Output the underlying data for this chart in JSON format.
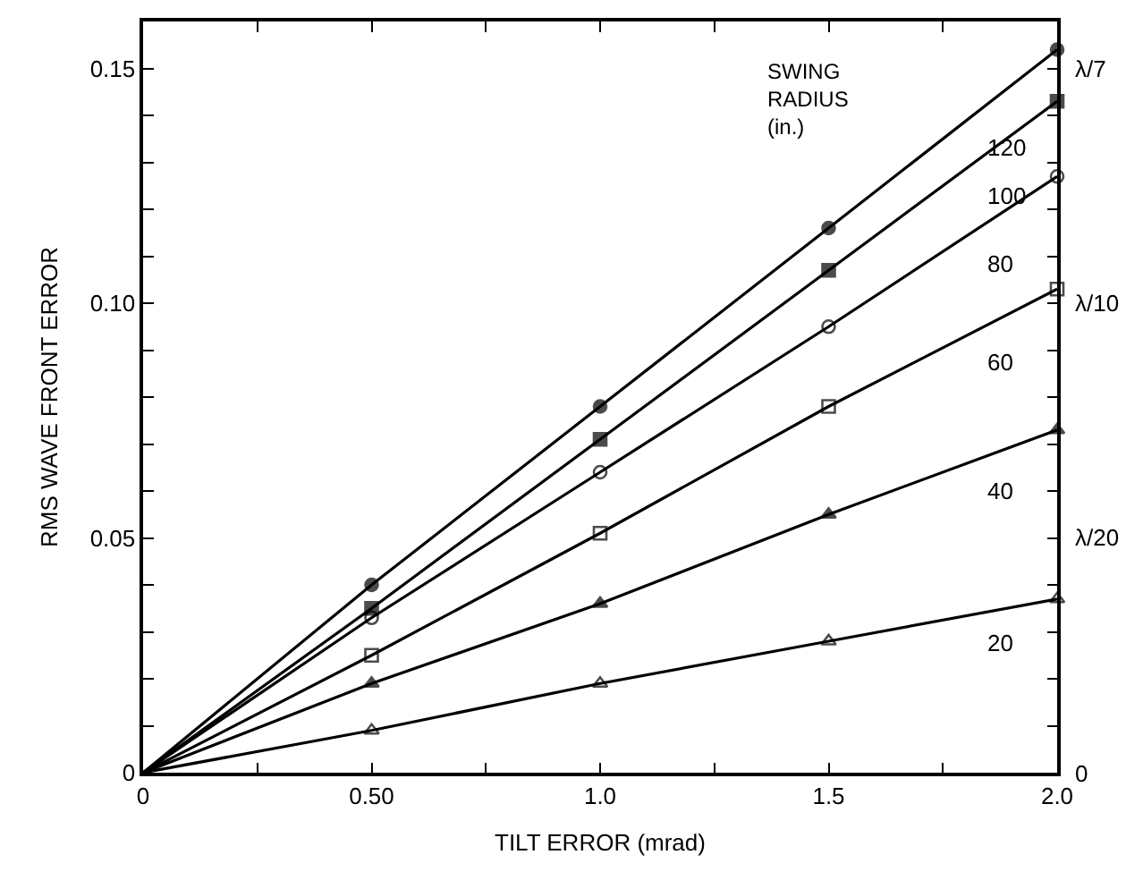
{
  "chart_data": {
    "type": "line",
    "xlabel": "TILT ERROR (mrad)",
    "ylabel": "RMS WAVE FRONT ERROR",
    "legend_title": "SWING RADIUS (in.)",
    "x": [
      0,
      0.5,
      1.0,
      1.5,
      2.0
    ],
    "series": [
      {
        "name": "120",
        "color": "#000000",
        "marker": "circle",
        "values": [
          0,
          0.04,
          0.078,
          0.116,
          0.154
        ]
      },
      {
        "name": "100",
        "color": "#000000",
        "marker": "square",
        "values": [
          0,
          0.035,
          0.071,
          0.107,
          0.143
        ]
      },
      {
        "name": "80",
        "color": "#000000",
        "marker": "circle",
        "values": [
          0,
          0.033,
          0.064,
          0.095,
          0.127
        ]
      },
      {
        "name": "60",
        "color": "#000000",
        "marker": "square",
        "values": [
          0,
          0.025,
          0.051,
          0.078,
          0.103
        ]
      },
      {
        "name": "40",
        "color": "#000000",
        "marker": "triangle",
        "values": [
          0,
          0.019,
          0.036,
          0.055,
          0.073
        ]
      },
      {
        "name": "20",
        "color": "#000000",
        "marker": "triangle",
        "values": [
          0,
          0.009,
          0.019,
          0.028,
          0.037
        ]
      }
    ],
    "xlim": [
      0,
      2.0
    ],
    "xticks": [
      0,
      {
        "value": 0.25,
        "label": null
      },
      {
        "value": 0.5,
        "label": "0.50"
      },
      {
        "value": 0.75,
        "label": null
      },
      {
        "value": 1.0,
        "label": "1.0"
      },
      {
        "value": 1.25,
        "label": null
      },
      {
        "value": 1.5,
        "label": "1.5"
      },
      {
        "value": 1.75,
        "label": null
      },
      {
        "value": 2.0,
        "label": "2.0"
      }
    ],
    "ylim": [
      0,
      0.16
    ],
    "yticks": [
      0,
      {
        "value": 0.01,
        "label": null
      },
      {
        "value": 0.02,
        "label": null
      },
      {
        "value": 0.03,
        "label": null
      },
      {
        "value": 0.04,
        "label": null
      },
      {
        "value": 0.05,
        "label": "0.05"
      },
      {
        "value": 0.06,
        "label": null
      },
      {
        "value": 0.07,
        "label": null
      },
      {
        "value": 0.08,
        "label": null
      },
      {
        "value": 0.09,
        "label": null
      },
      {
        "value": 0.1,
        "label": "0.10"
      },
      {
        "value": 0.11,
        "label": null
      },
      {
        "value": 0.12,
        "label": null
      },
      {
        "value": 0.13,
        "label": null
      },
      {
        "value": 0.14,
        "label": null
      },
      0.15
    ],
    "annotations": [
      "λ/7",
      "λ/10",
      "λ/20",
      "0"
    ],
    "legend": "top right",
    "line_style": "solid"
  }
}
